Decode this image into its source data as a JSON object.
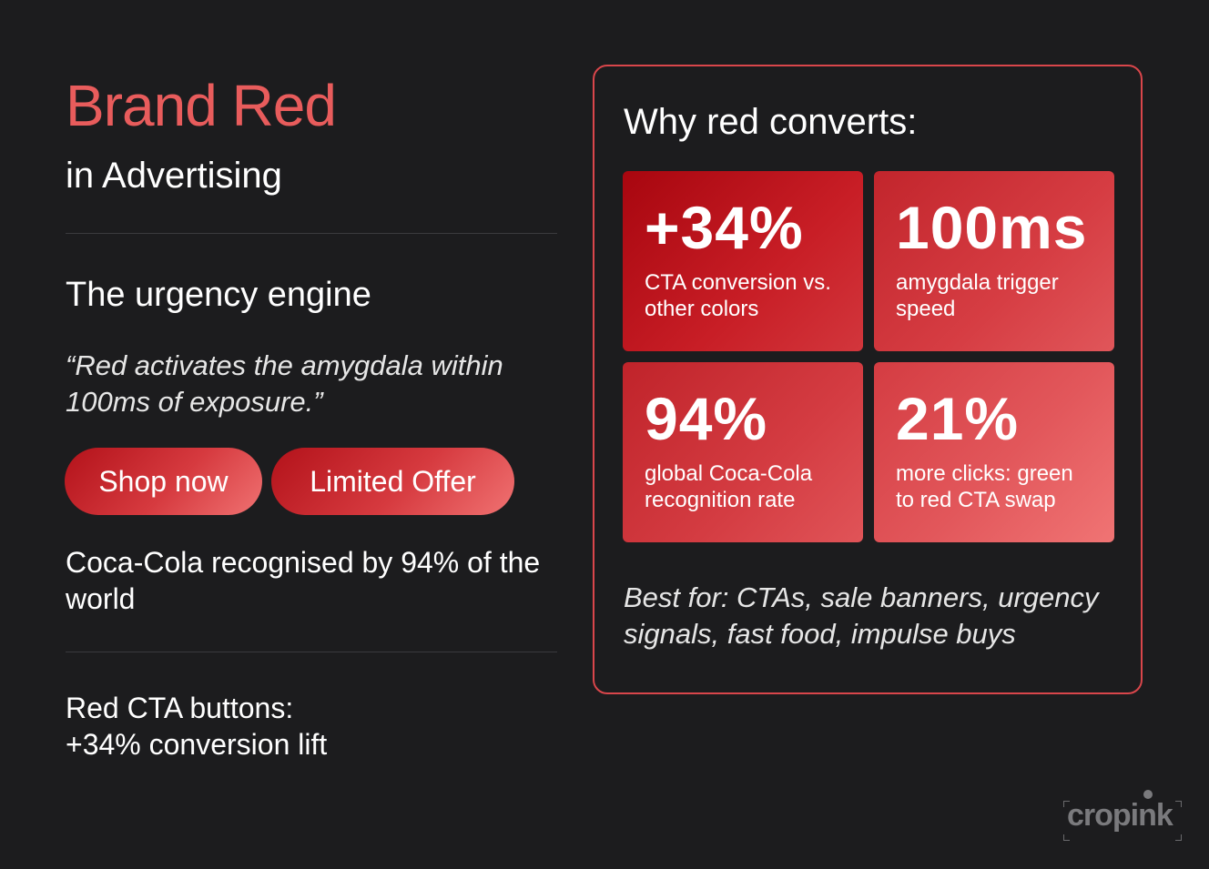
{
  "left": {
    "title": "Brand Red",
    "subtitle": "in Advertising",
    "section_heading": "The urgency engine",
    "quote": "“Red activates the amygdala within 100ms of exposure.”",
    "cta_buttons": [
      {
        "label": "Shop now"
      },
      {
        "label": "Limited Offer"
      }
    ],
    "fact": "Coca-Cola recognised by 94% of the world",
    "lift": {
      "line1": "Red CTA buttons:",
      "line2": "+34% conversion lift"
    }
  },
  "panel": {
    "title": "Why red converts:",
    "stats": [
      {
        "value": "+34%",
        "label": "CTA conversion vs. other colors"
      },
      {
        "value": "100ms",
        "label": "amygdala trigger speed"
      },
      {
        "value": "94%",
        "label": "global Coca-Cola recognition rate"
      },
      {
        "value": "21%",
        "label": "more clicks: green to red CTA swap"
      }
    ],
    "best_for": "Best for: CTAs, sale banners, urgency signals, fast food, impulse buys"
  },
  "logo": {
    "text": "cropink"
  },
  "colors": {
    "background": "#1c1c1e",
    "accent_red": "#e85c5c",
    "panel_border": "#d9464b",
    "divider": "#3a3a3d"
  }
}
